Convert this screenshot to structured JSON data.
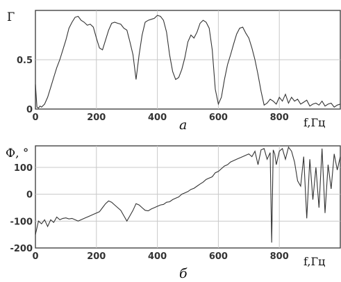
{
  "chart_data": [
    {
      "type": "line",
      "panel_label": "а",
      "ylabel": "Г",
      "xlabel": "f,Гц",
      "xlim": [
        0,
        1000
      ],
      "ylim": [
        0,
        1
      ],
      "x_ticks": [
        0,
        200,
        400,
        600,
        800
      ],
      "y_ticks": [
        0,
        0.5
      ],
      "y_tick_labels": [
        "0",
        "0.5"
      ],
      "grid": true,
      "series": [
        {
          "x": [
            0,
            5,
            10,
            15,
            20,
            30,
            40,
            50,
            60,
            70,
            80,
            90,
            100,
            110,
            120,
            130,
            140,
            150,
            160,
            170,
            180,
            190,
            200,
            210,
            220,
            230,
            240,
            250,
            260,
            270,
            280,
            290,
            300,
            310,
            320,
            330,
            340,
            350,
            360,
            370,
            380,
            390,
            400,
            410,
            420,
            430,
            440,
            450,
            460,
            470,
            480,
            490,
            500,
            510,
            520,
            530,
            540,
            550,
            560,
            570,
            580,
            590,
            600,
            610,
            620,
            630,
            640,
            650,
            660,
            670,
            680,
            690,
            700,
            710,
            720,
            730,
            740,
            750,
            760,
            770,
            780,
            790,
            800,
            810,
            820,
            830,
            840,
            850,
            860,
            870,
            880,
            890,
            900,
            910,
            920,
            930,
            940,
            950,
            960,
            970,
            980,
            990,
            1000
          ],
          "y": [
            0.25,
            0.02,
            0.01,
            0.03,
            0.02,
            0.05,
            0.12,
            0.22,
            0.32,
            0.42,
            0.5,
            0.6,
            0.7,
            0.82,
            0.88,
            0.93,
            0.94,
            0.9,
            0.88,
            0.85,
            0.86,
            0.83,
            0.72,
            0.62,
            0.6,
            0.7,
            0.8,
            0.87,
            0.88,
            0.87,
            0.86,
            0.82,
            0.8,
            0.68,
            0.55,
            0.3,
            0.55,
            0.75,
            0.88,
            0.9,
            0.91,
            0.92,
            0.95,
            0.94,
            0.9,
            0.78,
            0.55,
            0.38,
            0.3,
            0.32,
            0.4,
            0.52,
            0.68,
            0.75,
            0.72,
            0.78,
            0.87,
            0.9,
            0.88,
            0.82,
            0.6,
            0.2,
            0.05,
            0.12,
            0.3,
            0.45,
            0.55,
            0.66,
            0.76,
            0.82,
            0.83,
            0.77,
            0.72,
            0.62,
            0.5,
            0.35,
            0.18,
            0.04,
            0.06,
            0.1,
            0.08,
            0.05,
            0.12,
            0.08,
            0.15,
            0.06,
            0.12,
            0.08,
            0.1,
            0.05,
            0.07,
            0.09,
            0.03,
            0.05,
            0.06,
            0.04,
            0.08,
            0.03,
            0.05,
            0.06,
            0.02,
            0.04,
            0.05
          ]
        }
      ]
    },
    {
      "type": "line",
      "panel_label": "б",
      "ylabel": "Ф, °",
      "xlabel": "f,Гц",
      "xlim": [
        0,
        1000
      ],
      "ylim": [
        -200,
        180
      ],
      "x_ticks": [
        0,
        200,
        400,
        600,
        800
      ],
      "y_ticks": [
        -200,
        -100,
        0,
        100
      ],
      "y_tick_labels": [
        "-200",
        "-100",
        "0",
        "100"
      ],
      "grid": true,
      "series": [
        {
          "x": [
            0,
            10,
            20,
            30,
            40,
            50,
            60,
            70,
            80,
            90,
            100,
            110,
            120,
            130,
            140,
            150,
            160,
            170,
            180,
            190,
            200,
            210,
            220,
            230,
            240,
            250,
            260,
            270,
            280,
            290,
            300,
            310,
            320,
            330,
            340,
            350,
            360,
            370,
            380,
            390,
            400,
            410,
            420,
            430,
            440,
            450,
            460,
            470,
            480,
            490,
            500,
            510,
            520,
            530,
            540,
            550,
            560,
            570,
            580,
            590,
            600,
            610,
            620,
            630,
            640,
            650,
            660,
            670,
            680,
            690,
            700,
            710,
            720,
            730,
            740,
            750,
            760,
            770,
            775,
            780,
            785,
            790,
            800,
            810,
            820,
            830,
            840,
            850,
            860,
            870,
            880,
            890,
            900,
            910,
            920,
            930,
            940,
            950,
            960,
            970,
            980,
            990,
            1000
          ],
          "y": [
            -150,
            -100,
            -110,
            -95,
            -120,
            -95,
            -105,
            -85,
            -95,
            -90,
            -88,
            -92,
            -90,
            -95,
            -100,
            -95,
            -90,
            -85,
            -80,
            -75,
            -70,
            -65,
            -50,
            -35,
            -25,
            -30,
            -40,
            -50,
            -60,
            -80,
            -100,
            -80,
            -60,
            -35,
            -40,
            -50,
            -60,
            -62,
            -55,
            -50,
            -45,
            -40,
            -38,
            -30,
            -28,
            -20,
            -15,
            -10,
            0,
            5,
            10,
            18,
            22,
            30,
            38,
            45,
            55,
            60,
            65,
            80,
            85,
            95,
            105,
            110,
            120,
            125,
            130,
            135,
            140,
            145,
            150,
            140,
            160,
            110,
            165,
            170,
            130,
            155,
            -180,
            165,
            150,
            110,
            160,
            170,
            130,
            175,
            160,
            120,
            50,
            30,
            140,
            -90,
            130,
            -20,
            100,
            -50,
            170,
            -70,
            110,
            20,
            150,
            90,
            140
          ]
        }
      ]
    }
  ]
}
